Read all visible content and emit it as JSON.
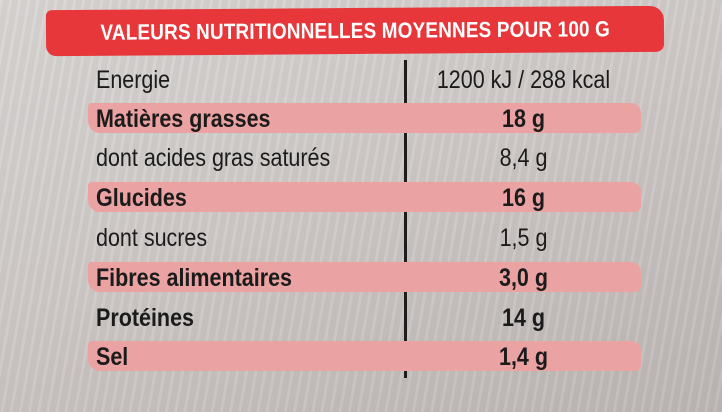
{
  "header": {
    "title": "VALEURS NUTRITIONNELLES MOYENNES POUR 100 G"
  },
  "rows": [
    {
      "label": "Energie",
      "value": "1200 kJ / 288 kcal",
      "highlight": false,
      "bold": false
    },
    {
      "label": "Matières grasses",
      "value": "18 g",
      "highlight": true,
      "bold": true
    },
    {
      "label": "dont acides gras saturés",
      "value": "8,4 g",
      "highlight": false,
      "bold": false
    },
    {
      "label": "Glucides",
      "value": "16 g",
      "highlight": true,
      "bold": true
    },
    {
      "label": "dont sucres",
      "value": "1,5 g",
      "highlight": false,
      "bold": false
    },
    {
      "label": "Fibres alimentaires",
      "value": "3,0 g",
      "highlight": true,
      "bold": true
    },
    {
      "label": "Protéines",
      "value": "14 g",
      "highlight": false,
      "bold": true
    },
    {
      "label": "Sel",
      "value": "1,4 g",
      "highlight": true,
      "bold": true
    }
  ],
  "colors": {
    "header": "#e8373b",
    "band": "#eba2a2",
    "text": "#1b1b1b"
  }
}
